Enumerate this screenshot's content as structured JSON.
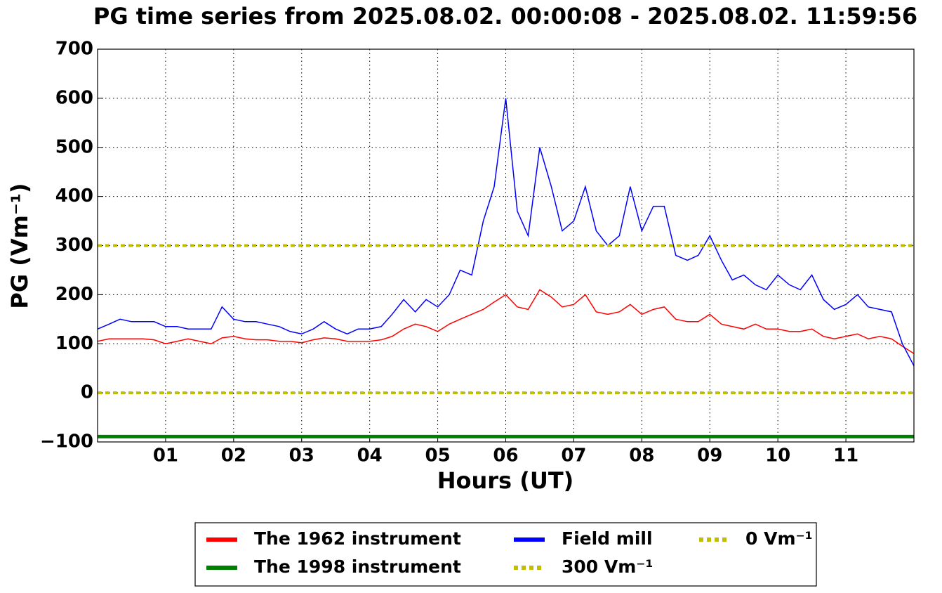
{
  "chart_data": {
    "type": "line",
    "title": "PG time series from 2025.08.02. 00:00:08 - 2025.08.02. 11:59:56",
    "x_label": "Hours (UT)",
    "y_label": "PG (Vm⁻¹)",
    "x": [
      0,
      0.17,
      0.33,
      0.5,
      0.67,
      0.83,
      1,
      1.17,
      1.33,
      1.5,
      1.67,
      1.83,
      2,
      2.17,
      2.33,
      2.5,
      2.67,
      2.83,
      3,
      3.17,
      3.33,
      3.5,
      3.67,
      3.83,
      4,
      4.17,
      4.33,
      4.5,
      4.67,
      4.83,
      5,
      5.17,
      5.33,
      5.5,
      5.67,
      5.83,
      6,
      6.17,
      6.33,
      6.5,
      6.67,
      6.83,
      7,
      7.17,
      7.33,
      7.5,
      7.67,
      7.83,
      8,
      8.17,
      8.33,
      8.5,
      8.67,
      8.83,
      9,
      9.17,
      9.33,
      9.5,
      9.67,
      9.83,
      10,
      10.17,
      10.33,
      10.5,
      10.67,
      10.83,
      11,
      11.17,
      11.33,
      11.5,
      11.67,
      11.83,
      12
    ],
    "series": [
      {
        "name": "The 1962 instrument",
        "color": "#ff0000",
        "values": [
          105,
          110,
          110,
          110,
          110,
          108,
          100,
          105,
          110,
          105,
          100,
          112,
          115,
          110,
          108,
          108,
          105,
          105,
          102,
          108,
          112,
          110,
          105,
          105,
          105,
          108,
          115,
          130,
          140,
          135,
          125,
          140,
          150,
          160,
          170,
          185,
          200,
          175,
          170,
          210,
          195,
          175,
          180,
          200,
          165,
          160,
          165,
          180,
          160,
          170,
          175,
          150,
          145,
          145,
          160,
          140,
          135,
          130,
          140,
          130,
          130,
          125,
          125,
          130,
          115,
          110,
          115,
          120,
          110,
          115,
          110,
          95,
          80
        ]
      },
      {
        "name": "The 1998 instrument",
        "color": "#008000",
        "values": [
          -89,
          -89,
          -89,
          -89,
          -89,
          -89,
          -89,
          -89,
          -89,
          -89,
          -89,
          -89,
          -89,
          -89,
          -89,
          -89,
          -89,
          -89,
          -89,
          -89,
          -89,
          -89,
          -89,
          -89,
          -89,
          -89,
          -89,
          -89,
          -89,
          -89,
          -89,
          -89,
          -89,
          -89,
          -89,
          -89,
          -89,
          -89,
          -89,
          -89,
          -89,
          -89,
          -89,
          -89,
          -89,
          -89,
          -89,
          -89,
          -89,
          -89,
          -89,
          -89,
          -89,
          -89,
          -89,
          -89,
          -89,
          -89,
          -89,
          -89,
          -89,
          -89,
          -89,
          -89,
          -89,
          -89,
          -89,
          -89,
          -89,
          -89,
          -89,
          -89,
          -89
        ]
      },
      {
        "name": "Field mill",
        "color": "#0000ff",
        "values": [
          130,
          140,
          150,
          145,
          145,
          145,
          135,
          135,
          130,
          130,
          130,
          175,
          150,
          145,
          145,
          140,
          135,
          125,
          120,
          130,
          145,
          130,
          120,
          130,
          130,
          135,
          160,
          190,
          165,
          190,
          175,
          200,
          250,
          240,
          350,
          420,
          600,
          370,
          320,
          500,
          420,
          330,
          350,
          420,
          330,
          300,
          320,
          420,
          330,
          380,
          380,
          280,
          270,
          280,
          320,
          270,
          230,
          240,
          220,
          210,
          240,
          220,
          210,
          240,
          190,
          170,
          180,
          200,
          175,
          170,
          165,
          100,
          55
        ]
      }
    ],
    "reference_lines": [
      {
        "name": "300 Vm⁻¹",
        "value": 300,
        "color": "#bfbf00"
      },
      {
        "name": "0 Vm⁻¹",
        "value": 0,
        "color": "#bfbf00"
      }
    ],
    "xlim": [
      0,
      12
    ],
    "xticks": [
      {
        "value": 1,
        "label": "01"
      },
      {
        "value": 2,
        "label": "02"
      },
      {
        "value": 3,
        "label": "03"
      },
      {
        "value": 4,
        "label": "04"
      },
      {
        "value": 5,
        "label": "05"
      },
      {
        "value": 6,
        "label": "06"
      },
      {
        "value": 7,
        "label": "07"
      },
      {
        "value": 8,
        "label": "08"
      },
      {
        "value": 9,
        "label": "09"
      },
      {
        "value": 10,
        "label": "10"
      },
      {
        "value": 11,
        "label": "11"
      }
    ],
    "ylim": [
      -100,
      700
    ],
    "yticks": [
      {
        "value": -100,
        "label": "−100"
      },
      0,
      100,
      200,
      300,
      400,
      500,
      600,
      700
    ],
    "grid": true,
    "legend": "bottom"
  }
}
